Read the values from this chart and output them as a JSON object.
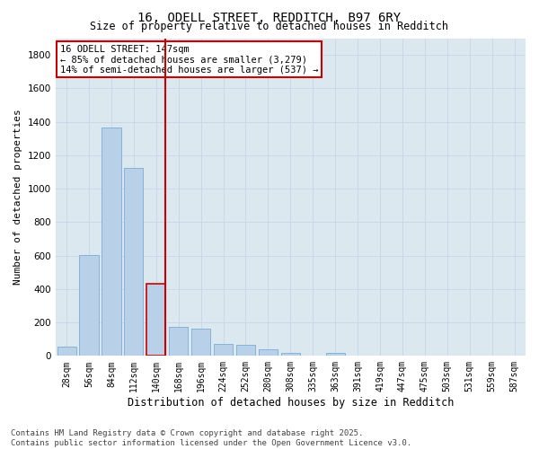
{
  "title_line1": "16, ODELL STREET, REDDITCH, B97 6RY",
  "title_line2": "Size of property relative to detached houses in Redditch",
  "xlabel": "Distribution of detached houses by size in Redditch",
  "ylabel": "Number of detached properties",
  "categories": [
    "28sqm",
    "56sqm",
    "84sqm",
    "112sqm",
    "140sqm",
    "168sqm",
    "196sqm",
    "224sqm",
    "252sqm",
    "280sqm",
    "308sqm",
    "335sqm",
    "363sqm",
    "391sqm",
    "419sqm",
    "447sqm",
    "475sqm",
    "503sqm",
    "531sqm",
    "559sqm",
    "587sqm"
  ],
  "values": [
    55,
    605,
    1365,
    1125,
    430,
    175,
    165,
    70,
    65,
    40,
    20,
    0,
    20,
    0,
    0,
    0,
    0,
    0,
    0,
    0,
    0
  ],
  "bar_color": "#b8d0e8",
  "bar_edge_color": "#7aacd4",
  "highlight_bar_index": 4,
  "highlight_line_color": "#cc0000",
  "annotation_text": "16 ODELL STREET: 147sqm\n← 85% of detached houses are smaller (3,279)\n14% of semi-detached houses are larger (537) →",
  "ylim": [
    0,
    1900
  ],
  "yticks": [
    0,
    200,
    400,
    600,
    800,
    1000,
    1200,
    1400,
    1600,
    1800
  ],
  "grid_color": "#c8d8ea",
  "bg_color": "#dce8f0",
  "footer_text": "Contains HM Land Registry data © Crown copyright and database right 2025.\nContains public sector information licensed under the Open Government Licence v3.0."
}
